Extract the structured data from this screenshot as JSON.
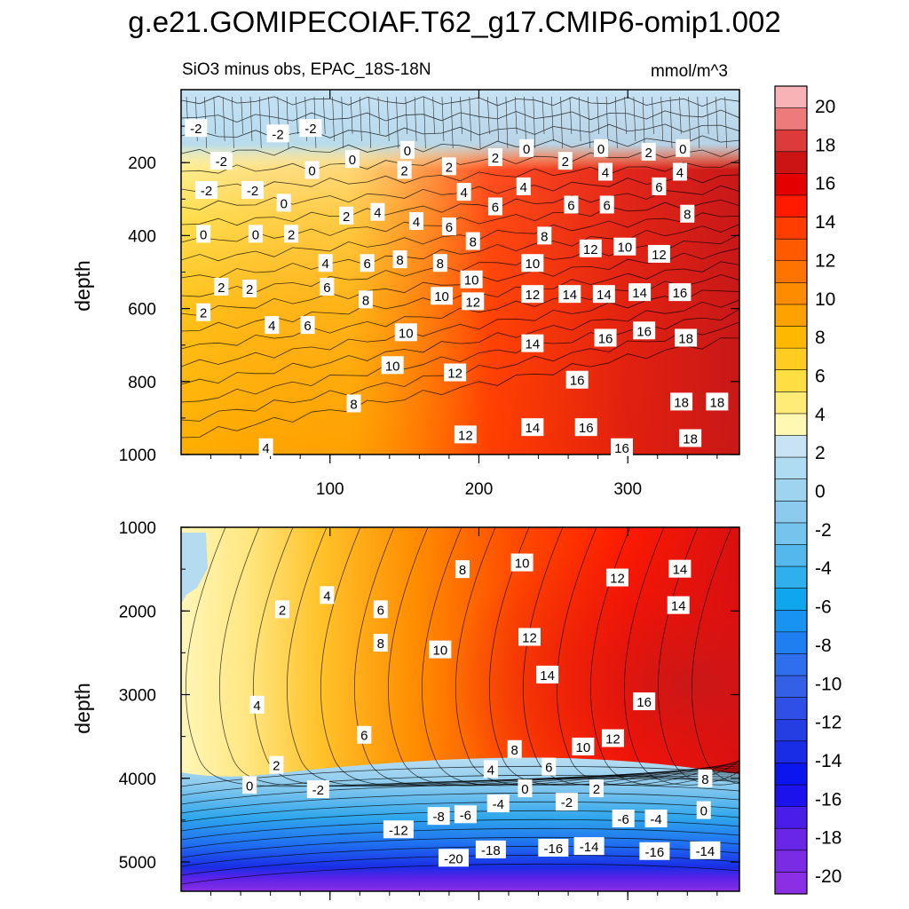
{
  "chart_data": {
    "type": "contour",
    "title": "g.e21.GOMIPECOIAF.T62_g17.CMIP6-omip1.002",
    "subtitle_left": "SiO3 minus obs, EPAC_18S-18N",
    "subtitle_right": "mmol/m^3",
    "colorbar": {
      "levels": [
        -20,
        -18,
        -16,
        -14,
        -12,
        -10,
        -8,
        -6,
        -4,
        -2,
        0,
        2,
        4,
        6,
        8,
        10,
        12,
        14,
        16,
        18,
        20
      ],
      "tick_labels": [
        "20",
        "18",
        "16",
        "14",
        "12",
        "10",
        "8",
        "6",
        "4",
        "2",
        "0",
        "-2",
        "-4",
        "-6",
        "-8",
        "-10",
        "-12",
        "-14",
        "-16",
        "-18",
        "-20"
      ],
      "colors_top_to_bottom": [
        "#f7b3b6",
        "#ee7b7b",
        "#dd3b3b",
        "#cc1414",
        "#e50000",
        "#ff1a00",
        "#ff3d00",
        "#ff5a00",
        "#ff7300",
        "#ff8c00",
        "#ffa200",
        "#ffb800",
        "#ffcc22",
        "#ffde44",
        "#ffec77",
        "#fff8b3",
        "#c8e4f4",
        "#b0dcf1",
        "#9fd4ef",
        "#8ccbee",
        "#76c3ed",
        "#55b8ec",
        "#2fb0ec",
        "#10a6ee",
        "#1893ef",
        "#1f7ff0",
        "#2f6fee",
        "#3460e6",
        "#2f4fe6",
        "#243ee4",
        "#1a2de6",
        "#0b16ef",
        "#1b12ec",
        "#4a1ee8",
        "#6a26e6",
        "#7a2be4",
        "#8a2fe3"
      ]
    },
    "panels": [
      {
        "name": "upper",
        "ylabel": "depth",
        "x_range": [
          0,
          375
        ],
        "y_range": [
          0,
          1000
        ],
        "x_ticks": [
          100,
          200,
          300
        ],
        "x_tick_labels": [
          "100",
          "200",
          "300"
        ],
        "y_ticks": [
          200,
          400,
          600,
          800,
          1000
        ],
        "y_tick_labels": [
          "200",
          "400",
          "600",
          "800",
          "1000"
        ],
        "contour_labels": [
          {
            "x": 10,
            "y": 105,
            "t": "-2"
          },
          {
            "x": 65,
            "y": 120,
            "t": "-2"
          },
          {
            "x": 87,
            "y": 105,
            "t": "-2"
          },
          {
            "x": 27,
            "y": 195,
            "t": "-2"
          },
          {
            "x": 17,
            "y": 275,
            "t": "-2"
          },
          {
            "x": 48,
            "y": 275,
            "t": "-2"
          },
          {
            "x": 152,
            "y": 165,
            "t": "0"
          },
          {
            "x": 115,
            "y": 190,
            "t": "0"
          },
          {
            "x": 88,
            "y": 220,
            "t": "0"
          },
          {
            "x": 232,
            "y": 160,
            "t": "0"
          },
          {
            "x": 282,
            "y": 160,
            "t": "0"
          },
          {
            "x": 337,
            "y": 160,
            "t": "0"
          },
          {
            "x": 69,
            "y": 310,
            "t": "0"
          },
          {
            "x": 15,
            "y": 395,
            "t": "0"
          },
          {
            "x": 50,
            "y": 395,
            "t": "0"
          },
          {
            "x": 211,
            "y": 185,
            "t": "2"
          },
          {
            "x": 258,
            "y": 195,
            "t": "2"
          },
          {
            "x": 314,
            "y": 170,
            "t": "2"
          },
          {
            "x": 150,
            "y": 220,
            "t": "2"
          },
          {
            "x": 180,
            "y": 210,
            "t": "2"
          },
          {
            "x": 74,
            "y": 395,
            "t": "2"
          },
          {
            "x": 111,
            "y": 345,
            "t": "2"
          },
          {
            "x": 27,
            "y": 540,
            "t": "2"
          },
          {
            "x": 46,
            "y": 545,
            "t": "2"
          },
          {
            "x": 15,
            "y": 610,
            "t": "2"
          },
          {
            "x": 285,
            "y": 225,
            "t": "4"
          },
          {
            "x": 335,
            "y": 225,
            "t": "4"
          },
          {
            "x": 230,
            "y": 265,
            "t": "4"
          },
          {
            "x": 190,
            "y": 280,
            "t": "4"
          },
          {
            "x": 158,
            "y": 360,
            "t": "4"
          },
          {
            "x": 132,
            "y": 335,
            "t": "4"
          },
          {
            "x": 97,
            "y": 475,
            "t": "4"
          },
          {
            "x": 61,
            "y": 645,
            "t": "4"
          },
          {
            "x": 57,
            "y": 980,
            "t": "4"
          },
          {
            "x": 321,
            "y": 265,
            "t": "6"
          },
          {
            "x": 262,
            "y": 315,
            "t": "6"
          },
          {
            "x": 286,
            "y": 315,
            "t": "6"
          },
          {
            "x": 211,
            "y": 320,
            "t": "6"
          },
          {
            "x": 180,
            "y": 375,
            "t": "6"
          },
          {
            "x": 125,
            "y": 475,
            "t": "6"
          },
          {
            "x": 98,
            "y": 540,
            "t": "6"
          },
          {
            "x": 85,
            "y": 645,
            "t": "6"
          },
          {
            "x": 340,
            "y": 340,
            "t": "8"
          },
          {
            "x": 244,
            "y": 400,
            "t": "8"
          },
          {
            "x": 196,
            "y": 415,
            "t": "8"
          },
          {
            "x": 147,
            "y": 465,
            "t": "8"
          },
          {
            "x": 174,
            "y": 475,
            "t": "8"
          },
          {
            "x": 124,
            "y": 575,
            "t": "8"
          },
          {
            "x": 116,
            "y": 860,
            "t": "8"
          },
          {
            "x": 298,
            "y": 430,
            "t": "10"
          },
          {
            "x": 236,
            "y": 475,
            "t": "10"
          },
          {
            "x": 195,
            "y": 520,
            "t": "10"
          },
          {
            "x": 175,
            "y": 565,
            "t": "10"
          },
          {
            "x": 151,
            "y": 665,
            "t": "10"
          },
          {
            "x": 142,
            "y": 755,
            "t": "10"
          },
          {
            "x": 275,
            "y": 435,
            "t": "12"
          },
          {
            "x": 321,
            "y": 450,
            "t": "12"
          },
          {
            "x": 236,
            "y": 560,
            "t": "12"
          },
          {
            "x": 196,
            "y": 580,
            "t": "12"
          },
          {
            "x": 184,
            "y": 775,
            "t": "12"
          },
          {
            "x": 191,
            "y": 945,
            "t": "12"
          },
          {
            "x": 261,
            "y": 560,
            "t": "14"
          },
          {
            "x": 284,
            "y": 560,
            "t": "14"
          },
          {
            "x": 308,
            "y": 555,
            "t": "14"
          },
          {
            "x": 236,
            "y": 695,
            "t": "14"
          },
          {
            "x": 236,
            "y": 925,
            "t": "14"
          },
          {
            "x": 335,
            "y": 555,
            "t": "16"
          },
          {
            "x": 285,
            "y": 680,
            "t": "16"
          },
          {
            "x": 311,
            "y": 660,
            "t": "16"
          },
          {
            "x": 266,
            "y": 795,
            "t": "16"
          },
          {
            "x": 272,
            "y": 925,
            "t": "16"
          },
          {
            "x": 296,
            "y": 980,
            "t": "16"
          },
          {
            "x": 339,
            "y": 680,
            "t": "18"
          },
          {
            "x": 336,
            "y": 855,
            "t": "18"
          },
          {
            "x": 360,
            "y": 855,
            "t": "18"
          },
          {
            "x": 342,
            "y": 955,
            "t": "18"
          }
        ]
      },
      {
        "name": "lower",
        "ylabel": "depth",
        "x_range": [
          0,
          375
        ],
        "y_range": [
          1000,
          5350
        ],
        "x_ticks": [
          100,
          200,
          300
        ],
        "y_ticks": [
          1000,
          2000,
          3000,
          4000,
          5000
        ],
        "y_tick_labels": [
          "1000",
          "2000",
          "3000",
          "4000",
          "5000"
        ],
        "contour_labels": [
          {
            "x": 229,
            "y": 1420,
            "t": "10"
          },
          {
            "x": 189,
            "y": 1500,
            "t": "8"
          },
          {
            "x": 335,
            "y": 1495,
            "t": "14"
          },
          {
            "x": 293,
            "y": 1600,
            "t": "12"
          },
          {
            "x": 98,
            "y": 1810,
            "t": "4"
          },
          {
            "x": 68,
            "y": 1980,
            "t": "2"
          },
          {
            "x": 134,
            "y": 1980,
            "t": "6"
          },
          {
            "x": 334,
            "y": 1930,
            "t": "14"
          },
          {
            "x": 134,
            "y": 2380,
            "t": "8"
          },
          {
            "x": 174,
            "y": 2460,
            "t": "10"
          },
          {
            "x": 234,
            "y": 2310,
            "t": "12"
          },
          {
            "x": 246,
            "y": 2760,
            "t": "14"
          },
          {
            "x": 311,
            "y": 3080,
            "t": "16"
          },
          {
            "x": 51,
            "y": 3120,
            "t": "4"
          },
          {
            "x": 123,
            "y": 3480,
            "t": "6"
          },
          {
            "x": 290,
            "y": 3520,
            "t": "12"
          },
          {
            "x": 270,
            "y": 3620,
            "t": "10"
          },
          {
            "x": 224,
            "y": 3650,
            "t": "8"
          },
          {
            "x": 247,
            "y": 3860,
            "t": "6"
          },
          {
            "x": 208,
            "y": 3890,
            "t": "4"
          },
          {
            "x": 64,
            "y": 3840,
            "t": "2"
          },
          {
            "x": 352,
            "y": 4000,
            "t": "8"
          },
          {
            "x": 46,
            "y": 4080,
            "t": "0"
          },
          {
            "x": 92,
            "y": 4130,
            "t": "-2"
          },
          {
            "x": 231,
            "y": 4120,
            "t": "0"
          },
          {
            "x": 279,
            "y": 4120,
            "t": "2"
          },
          {
            "x": 259,
            "y": 4280,
            "t": "-2"
          },
          {
            "x": 351,
            "y": 4380,
            "t": "0"
          },
          {
            "x": 213,
            "y": 4300,
            "t": "-4"
          },
          {
            "x": 191,
            "y": 4430,
            "t": "-6"
          },
          {
            "x": 173,
            "y": 4450,
            "t": "-8"
          },
          {
            "x": 319,
            "y": 4480,
            "t": "-4"
          },
          {
            "x": 297,
            "y": 4480,
            "t": "-6"
          },
          {
            "x": 146,
            "y": 4610,
            "t": "-12"
          },
          {
            "x": 274,
            "y": 4810,
            "t": "-14"
          },
          {
            "x": 250,
            "y": 4830,
            "t": "-16"
          },
          {
            "x": 208,
            "y": 4850,
            "t": "-18"
          },
          {
            "x": 183,
            "y": 4950,
            "t": "-20"
          },
          {
            "x": 318,
            "y": 4870,
            "t": "-16"
          },
          {
            "x": 352,
            "y": 4860,
            "t": "-14"
          }
        ]
      }
    ]
  }
}
